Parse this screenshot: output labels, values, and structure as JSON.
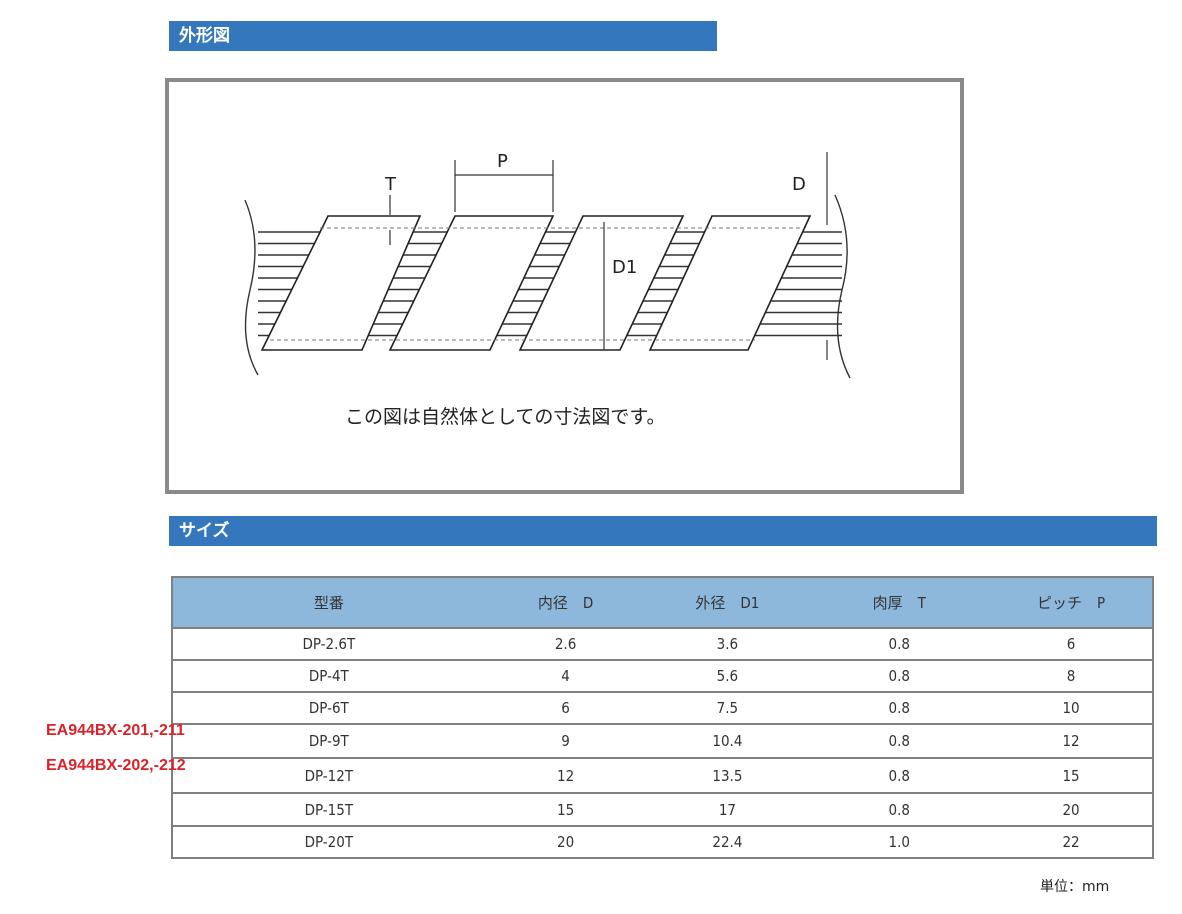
{
  "sections": {
    "outline": "外形図",
    "size": "サイズ"
  },
  "diagram": {
    "labels": {
      "T": "T",
      "P": "P",
      "D": "D",
      "D1": "D1"
    },
    "caption": "この図は自然体としての寸法図です。"
  },
  "table": {
    "headers": [
      "型番",
      "内径　D",
      "外径　D1",
      "肉厚　T",
      "ピッチ　P"
    ],
    "rows": [
      [
        "DP-2.6T",
        "2.6",
        "3.6",
        "0.8",
        "6"
      ],
      [
        "DP-4T",
        "4",
        "5.6",
        "0.8",
        "8"
      ],
      [
        "DP-6T",
        "6",
        "7.5",
        "0.8",
        "10"
      ],
      [
        "DP-9T",
        "9",
        "10.4",
        "0.8",
        "12"
      ],
      [
        "DP-12T",
        "12",
        "13.5",
        "0.8",
        "15"
      ],
      [
        "DP-15T",
        "15",
        "17",
        "0.8",
        "20"
      ],
      [
        "DP-20T",
        "20",
        "22.4",
        "1.0",
        "22"
      ]
    ]
  },
  "side_labels": [
    "EA944BX-201,-211",
    "EA944BX-202,-212"
  ],
  "unit": "単位：mm",
  "colors": {
    "section_bar": "#3477bd",
    "table_header": "#8db8dc",
    "side_label": "#d8232a"
  }
}
